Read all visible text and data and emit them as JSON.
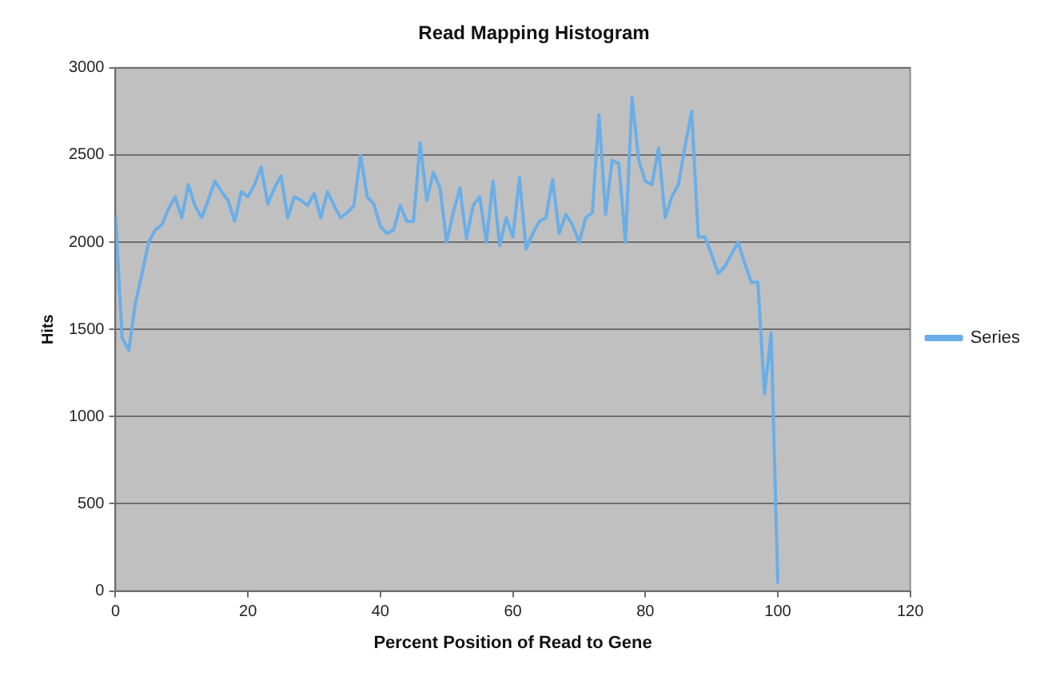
{
  "chart_data": {
    "type": "line",
    "title": "Read Mapping Histogram",
    "xlabel": "Percent Position of Read to Gene",
    "ylabel": "Hits",
    "xlim": [
      0,
      120
    ],
    "xticks": [
      0,
      20,
      40,
      60,
      80,
      100,
      120
    ],
    "ylim": [
      0,
      3000
    ],
    "yticks": [
      0,
      500,
      1000,
      1500,
      2000,
      2500,
      3000
    ],
    "grid": "y",
    "legend": "right",
    "marker": "none",
    "line_style": "solid",
    "series": [
      {
        "name": "Series",
        "color": "#6aaee8",
        "x": [
          0,
          1,
          2,
          3,
          4,
          5,
          6,
          7,
          8,
          9,
          10,
          11,
          12,
          13,
          14,
          15,
          16,
          17,
          18,
          19,
          20,
          21,
          22,
          23,
          24,
          25,
          26,
          27,
          28,
          29,
          30,
          31,
          32,
          33,
          34,
          35,
          36,
          37,
          38,
          39,
          40,
          41,
          42,
          43,
          44,
          45,
          46,
          47,
          48,
          49,
          50,
          51,
          52,
          53,
          54,
          55,
          56,
          57,
          58,
          59,
          60,
          61,
          62,
          63,
          64,
          65,
          66,
          67,
          68,
          69,
          70,
          71,
          72,
          73,
          74,
          75,
          76,
          77,
          78,
          79,
          80,
          81,
          82,
          83,
          84,
          85,
          86,
          87,
          88,
          89,
          90,
          91,
          92,
          93,
          94,
          95,
          96,
          97,
          98,
          99,
          100
        ],
        "values": [
          2150,
          1450,
          1380,
          1650,
          1820,
          2000,
          2070,
          2100,
          2190,
          2260,
          2140,
          2330,
          2210,
          2140,
          2240,
          2350,
          2290,
          2240,
          2120,
          2290,
          2260,
          2330,
          2430,
          2220,
          2310,
          2380,
          2140,
          2260,
          2240,
          2210,
          2280,
          2140,
          2290,
          2210,
          2140,
          2170,
          2210,
          2500,
          2260,
          2220,
          2090,
          2050,
          2070,
          2210,
          2120,
          2120,
          2570,
          2240,
          2400,
          2310,
          2000,
          2170,
          2310,
          2020,
          2210,
          2260,
          2000,
          2350,
          1980,
          2140,
          2030,
          2370,
          1960,
          2050,
          2120,
          2140,
          2360,
          2050,
          2160,
          2100,
          2000,
          2140,
          2170,
          2730,
          2160,
          2470,
          2450,
          2000,
          2830,
          2470,
          2350,
          2330,
          2540,
          2140,
          2260,
          2330,
          2550,
          2750,
          2030,
          2030,
          1930,
          1820,
          1860,
          1930,
          2000,
          1880,
          1770,
          1770,
          1130,
          1480,
          50
        ]
      }
    ]
  }
}
